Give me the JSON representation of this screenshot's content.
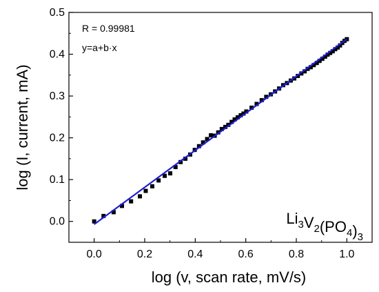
{
  "chart_data": {
    "type": "scatter",
    "title": "",
    "xlabel": "log (v, scan rate, mV/s)",
    "ylabel": "log (I, current, mA)",
    "xlim": [
      -0.1,
      1.1
    ],
    "ylim": [
      -0.05,
      0.5
    ],
    "xticks": [
      0.0,
      0.2,
      0.4,
      0.6,
      0.8,
      1.0
    ],
    "xtick_labels": [
      "0.0",
      "0.2",
      "0.4",
      "0.6",
      "0.8",
      "1.0"
    ],
    "yticks": [
      0.0,
      0.1,
      0.2,
      0.3,
      0.4,
      0.5
    ],
    "ytick_labels": [
      "0.0",
      "0.1",
      "0.2",
      "0.3",
      "0.4",
      "0.5"
    ],
    "grid": false,
    "legend": "none",
    "annotations": {
      "r_value": "R = 0.99981",
      "equation": "y=a+b·x",
      "compound": {
        "parts": [
          {
            "text": "Li",
            "sub": false
          },
          {
            "text": "3",
            "sub": true
          },
          {
            "text": "V",
            "sub": false
          },
          {
            "text": "2",
            "sub": true
          },
          {
            "text": "(PO",
            "sub": false
          },
          {
            "text": "4",
            "sub": true
          },
          {
            "text": ")",
            "sub": false
          },
          {
            "text": "3",
            "sub": true
          }
        ]
      }
    },
    "series": [
      {
        "kind": "scatter",
        "marker": "square",
        "color": "#000000",
        "x": [
          0.0,
          0.037,
          0.077,
          0.11,
          0.146,
          0.181,
          0.204,
          0.23,
          0.255,
          0.279,
          0.301,
          0.322,
          0.342,
          0.361,
          0.38,
          0.398,
          0.415,
          0.431,
          0.447,
          0.462,
          0.477,
          0.491,
          0.505,
          0.519,
          0.531,
          0.544,
          0.556,
          0.568,
          0.58,
          0.591,
          0.602,
          0.623,
          0.643,
          0.663,
          0.681,
          0.699,
          0.716,
          0.732,
          0.748,
          0.763,
          0.778,
          0.792,
          0.806,
          0.82,
          0.833,
          0.845,
          0.857,
          0.869,
          0.881,
          0.892,
          0.903,
          0.914,
          0.924,
          0.934,
          0.944,
          0.954,
          0.964,
          0.973,
          0.982,
          0.991,
          1.0
        ],
        "y": [
          0.0,
          0.013,
          0.022,
          0.037,
          0.048,
          0.06,
          0.073,
          0.084,
          0.098,
          0.109,
          0.115,
          0.13,
          0.142,
          0.15,
          0.16,
          0.171,
          0.18,
          0.189,
          0.197,
          0.206,
          0.205,
          0.213,
          0.221,
          0.226,
          0.231,
          0.238,
          0.244,
          0.249,
          0.254,
          0.258,
          0.263,
          0.272,
          0.281,
          0.29,
          0.298,
          0.304,
          0.311,
          0.318,
          0.326,
          0.331,
          0.337,
          0.342,
          0.348,
          0.354,
          0.359,
          0.365,
          0.369,
          0.374,
          0.379,
          0.384,
          0.389,
          0.394,
          0.399,
          0.403,
          0.407,
          0.412,
          0.416,
          0.421,
          0.427,
          0.432,
          0.436
        ]
      },
      {
        "kind": "line",
        "color": "#1f1fd6",
        "x": [
          0.0,
          1.0
        ],
        "y": [
          -0.007,
          0.436
        ]
      }
    ]
  }
}
